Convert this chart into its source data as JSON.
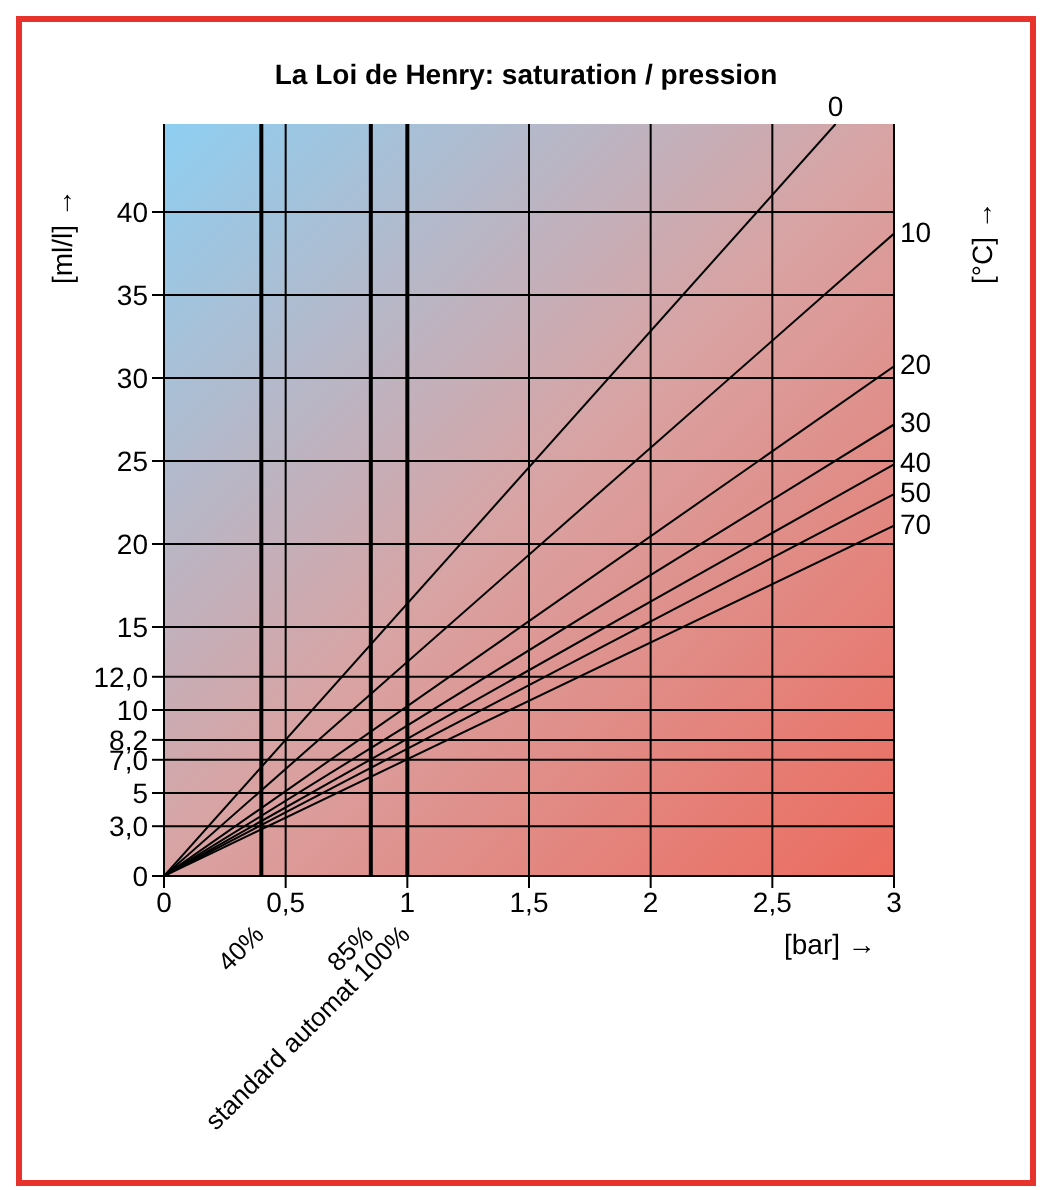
{
  "chart_data": {
    "type": "line",
    "title": "La Loi de Henry: saturation / pression",
    "xlabel": "[bar] →",
    "ylabel": "[ml/l] →",
    "y2label": "[°C] →",
    "series": [
      {
        "name": "0",
        "color": "#000000",
        "x": [
          0,
          2.76
        ],
        "values": [
          0,
          45.3
        ]
      },
      {
        "name": "10",
        "color": "#000000",
        "x": [
          0,
          3
        ],
        "values": [
          0,
          38.7
        ]
      },
      {
        "name": "20",
        "color": "#000000",
        "x": [
          0,
          3
        ],
        "values": [
          0,
          30.7
        ]
      },
      {
        "name": "30",
        "color": "#000000",
        "x": [
          0,
          3
        ],
        "values": [
          0,
          27.2
        ]
      },
      {
        "name": "40",
        "color": "#000000",
        "x": [
          0,
          3
        ],
        "values": [
          0,
          24.8
        ]
      },
      {
        "name": "50",
        "color": "#000000",
        "x": [
          0,
          3
        ],
        "values": [
          0,
          23
        ]
      },
      {
        "name": "70",
        "color": "#000000",
        "x": [
          0,
          3
        ],
        "values": [
          0,
          21.1
        ]
      }
    ],
    "xlim": [
      0,
      3
    ],
    "ylim": [
      0,
      45.3
    ],
    "xticks": [
      0,
      {
        "value": 0.5,
        "label": "0,5"
      },
      1,
      {
        "value": 1.5,
        "label": "1,5"
      },
      2,
      {
        "value": 2.5,
        "label": "2,5"
      },
      3
    ],
    "yticks": [
      0,
      {
        "value": 3,
        "label": "3,0"
      },
      5,
      {
        "value": 7,
        "label": "7,0"
      },
      {
        "value": 8.2,
        "label": "8,2"
      },
      10,
      {
        "value": 12,
        "label": "12,0"
      },
      15,
      20,
      25,
      30,
      35,
      40
    ],
    "ref_lines": [
      {
        "axis": "x",
        "value": 0.4,
        "label": "40%",
        "color": "#000000"
      },
      {
        "axis": "x",
        "value": 0.85,
        "label": "85%",
        "color": "#000000"
      },
      {
        "axis": "x",
        "value": 1,
        "label": "standard automat 100%",
        "color": "#000000"
      }
    ],
    "grid": true,
    "marker": "none",
    "line_style": "solid"
  }
}
